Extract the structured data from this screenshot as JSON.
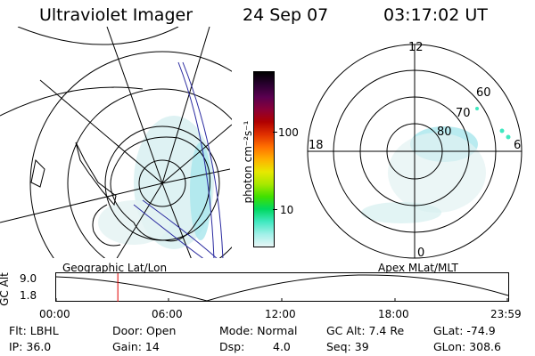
{
  "header": {
    "instrument": "Ultraviolet Imager",
    "date": "24 Sep 07",
    "time": "03:17:02 UT"
  },
  "colorbar": {
    "unit_label": "photon cm⁻²s⁻¹",
    "ticks": [
      "100",
      "10"
    ],
    "colors": [
      "#000000",
      "#2a0030",
      "#5a0050",
      "#8a0038",
      "#b00000",
      "#e03000",
      "#ff7000",
      "#ffb000",
      "#e8e800",
      "#a8e800",
      "#40e000",
      "#00d860",
      "#40e8c0",
      "#a0f0e8",
      "#e8f6f6"
    ]
  },
  "left_map": {
    "label": "Geographic Lat/Lon"
  },
  "right_map": {
    "label": "Apex MLat/MLT",
    "mlt_labels": {
      "top": "12",
      "left": "18",
      "right": "6",
      "bottom": "0"
    },
    "mlat_labels": [
      "60",
      "70",
      "80"
    ]
  },
  "orbit_plot": {
    "y_axis_title": "GC Alt",
    "y_ticks": [
      "9.0",
      "1.8"
    ],
    "x_ticks": [
      "00:00",
      "06:00",
      "12:00",
      "18:00",
      "23:59"
    ],
    "current_time_hours": 3.28
  },
  "status": {
    "flt": "Flt: LBHL",
    "ip": "IP: 36.0",
    "door": "Door: Open",
    "gain": "Gain: 14",
    "mode": "Mode: Normal",
    "dsp_label": "Dsp:",
    "dsp_value": "4.0",
    "gc_alt": "GC Alt: 7.4 Re",
    "seq": "Seq: 39",
    "glat": "GLat: -74.9",
    "glon": "GLon: 308.6"
  }
}
